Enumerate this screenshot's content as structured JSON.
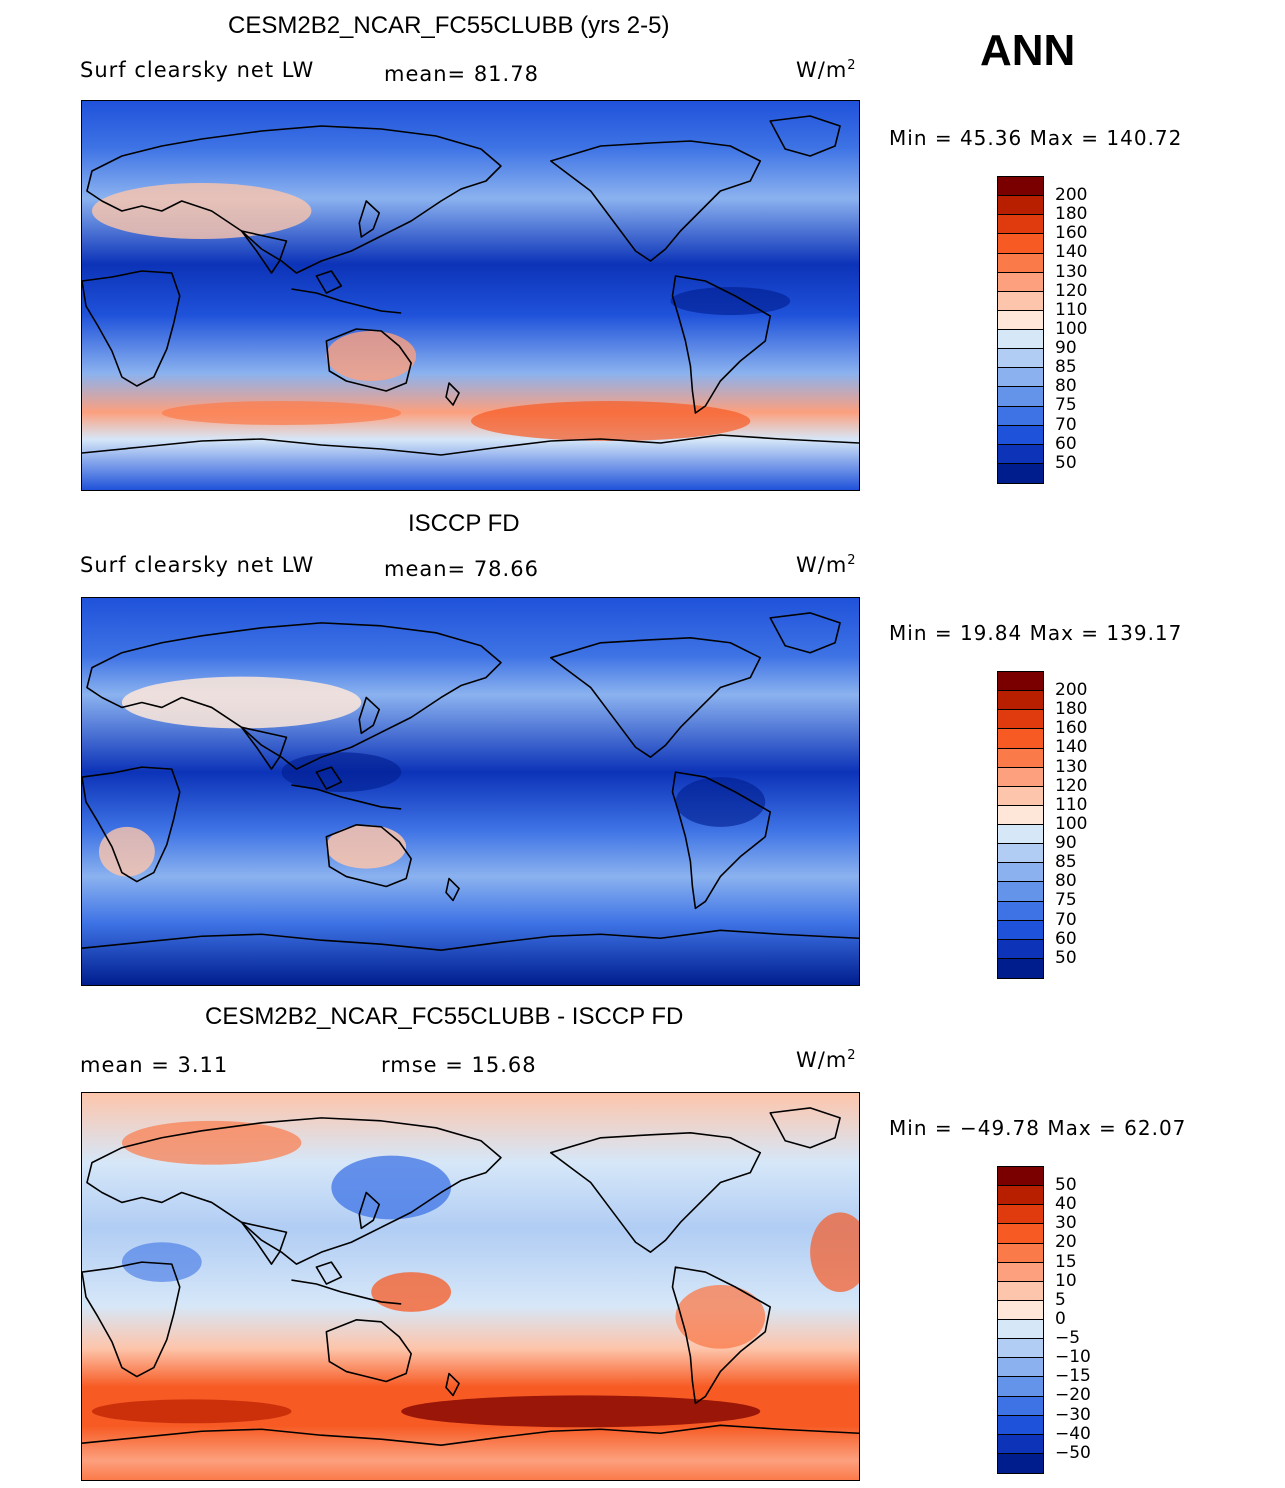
{
  "season": "ANN",
  "colors": {
    "abs_scale": [
      "#7a0000",
      "#b81e00",
      "#e03a0f",
      "#f75a23",
      "#fb7a4a",
      "#fca07e",
      "#fdc5ab",
      "#fee7d9",
      "#d6e7f8",
      "#b1cdf4",
      "#8bb2ef",
      "#6394ea",
      "#3e73e5",
      "#1f52da",
      "#0c33b8",
      "#001d8e"
    ],
    "diff_scale": [
      "#7a0000",
      "#b81e00",
      "#e03a0f",
      "#f75a23",
      "#fb7a4a",
      "#fca07e",
      "#fdc5ab",
      "#fee7d9",
      "#d6e7f8",
      "#b1cdf4",
      "#8bb2ef",
      "#6394ea",
      "#3e73e5",
      "#1f52da",
      "#0c33b8",
      "#001d8e"
    ]
  },
  "panels": [
    {
      "title": "CESM2B2_NCAR_FC55CLUBB (yrs 2-5)",
      "left_label": "Surf clearsky net LW",
      "stat1": "mean=   81.78",
      "stat2": "",
      "units": "W/m",
      "units_sup": "2",
      "minmax": "Min  =   45.36  Max  =  140.72",
      "colorbar_labels": [
        "200",
        "180",
        "160",
        "140",
        "130",
        "120",
        "110",
        "100",
        "90",
        "85",
        "80",
        "75",
        "70",
        "60",
        "50"
      ]
    },
    {
      "title": "ISCCP FD",
      "left_label": "Surf clearsky net LW",
      "stat1": "mean=   78.66",
      "stat2": "",
      "units": "W/m",
      "units_sup": "2",
      "minmax": "Min  =   19.84  Max  =  139.17",
      "colorbar_labels": [
        "200",
        "180",
        "160",
        "140",
        "130",
        "120",
        "110",
        "100",
        "90",
        "85",
        "80",
        "75",
        "70",
        "60",
        "50"
      ]
    },
    {
      "title": "CESM2B2_NCAR_FC55CLUBB - ISCCP FD",
      "left_label": "mean  =     3.11",
      "stat1": "rmse  =    15.68",
      "stat2": "",
      "units": "W/m",
      "units_sup": "2",
      "minmax": "Min  = −49.78  Max  =    62.07",
      "colorbar_labels": [
        "50",
        "40",
        "30",
        "20",
        "15",
        "10",
        "5",
        "0",
        "−5",
        "−10",
        "−15",
        "−20",
        "−30",
        "−40",
        "−50"
      ]
    }
  ]
}
